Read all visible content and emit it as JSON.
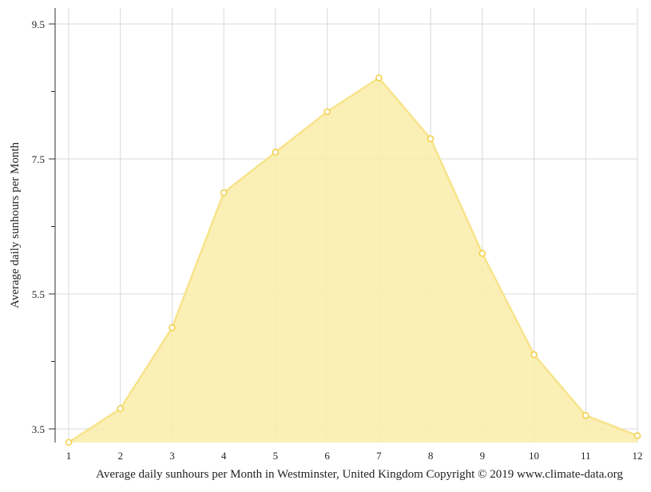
{
  "chart_data": {
    "type": "area",
    "title": "",
    "xlabel": "Average daily sunhours per Month in Westminster, United Kingdom Copyright © 2019 www.climate-data.org",
    "ylabel": "Average daily sunhours per Month",
    "x": [
      1,
      2,
      3,
      4,
      5,
      6,
      7,
      8,
      9,
      10,
      11,
      12
    ],
    "x_tick_labels": [
      "1",
      "2",
      "3",
      "4",
      "5",
      "6",
      "7",
      "8",
      "9",
      "10",
      "11",
      "12"
    ],
    "y_ticks": [
      3.5,
      5.5,
      7.5,
      9.5
    ],
    "y_tick_labels": [
      "3.5",
      "5.5",
      "7.5",
      "9.5"
    ],
    "y_minor_ticks": [
      4.5,
      6.5,
      8.5
    ],
    "series": [
      {
        "values": [
          3.3,
          3.8,
          5.0,
          7.0,
          7.6,
          8.2,
          8.7,
          7.8,
          6.1,
          4.6,
          3.7,
          3.4
        ]
      }
    ],
    "ylim": [
      3.3,
      9.75
    ],
    "xlim": [
      1,
      12
    ],
    "grid": true,
    "colors": {
      "fill": "#faeeae",
      "line": "#f8e38a",
      "marker_stroke": "#f2cf45",
      "grid": "#d8d8d8",
      "axis": "#333333"
    }
  }
}
